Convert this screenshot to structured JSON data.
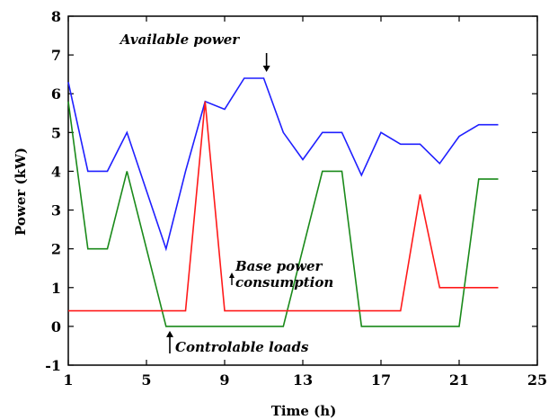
{
  "chart_data": {
    "type": "line",
    "title": "",
    "xlabel": "Time (h)",
    "ylabel": "Power (kW)",
    "xlim": [
      1,
      25
    ],
    "ylim": [
      -1,
      8
    ],
    "xticks": [
      1,
      5,
      9,
      13,
      17,
      21,
      25
    ],
    "yticks": [
      -1,
      0,
      1,
      2,
      3,
      4,
      5,
      6,
      7,
      8
    ],
    "grid": false,
    "legend": "none",
    "series": [
      {
        "key": "available",
        "color": "#1f1fff",
        "x": [
          1,
          2,
          3,
          4,
          5,
          6,
          7,
          8,
          9,
          10,
          11,
          12,
          13,
          14,
          15,
          16,
          17,
          18,
          19,
          20,
          21,
          22,
          23
        ],
        "values": [
          6.3,
          4.0,
          4.0,
          5.0,
          3.5,
          2.0,
          4.0,
          5.8,
          5.6,
          6.4,
          6.4,
          5.0,
          4.3,
          5.0,
          5.0,
          3.9,
          5.0,
          4.7,
          4.7,
          4.2,
          4.9,
          5.2,
          5.2
        ]
      },
      {
        "key": "controllable",
        "color": "#1a8a1a",
        "x": [
          1,
          2,
          3,
          4,
          6,
          7,
          8,
          9,
          10,
          11,
          12,
          14,
          15,
          16,
          17,
          18,
          19,
          20,
          21,
          22,
          23
        ],
        "values": [
          5.8,
          2.0,
          2.0,
          4.0,
          0.0,
          0.0,
          0.0,
          0.0,
          0.0,
          0.0,
          0.0,
          4.0,
          4.0,
          0.0,
          0.0,
          0.0,
          0.0,
          0.0,
          0.0,
          3.8,
          3.8
        ]
      },
      {
        "key": "base",
        "color": "#ff1a1a",
        "x": [
          1,
          2,
          3,
          4,
          5,
          6,
          7,
          8,
          9,
          10,
          11,
          12,
          13,
          14,
          15,
          16,
          17,
          18,
          19,
          20,
          21,
          22,
          23
        ],
        "values": [
          0.4,
          0.4,
          0.4,
          0.4,
          0.4,
          0.4,
          0.4,
          5.8,
          0.4,
          0.4,
          0.4,
          0.4,
          0.4,
          0.4,
          0.4,
          0.4,
          0.4,
          0.4,
          3.4,
          1.0,
          1.0,
          1.0,
          1.0
        ]
      }
    ],
    "annotations": [
      {
        "key": "available",
        "text": "Available power",
        "points_to": [
          10.5,
          6.4
        ],
        "arrow": "down"
      },
      {
        "key": "base",
        "text": "Base power consumption",
        "points_to": [
          9.4,
          0.4
        ],
        "arrow": "up"
      },
      {
        "key": "controllable",
        "text": "Controlable loads",
        "points_to": [
          6.2,
          0.0
        ],
        "arrow": "up"
      }
    ]
  }
}
